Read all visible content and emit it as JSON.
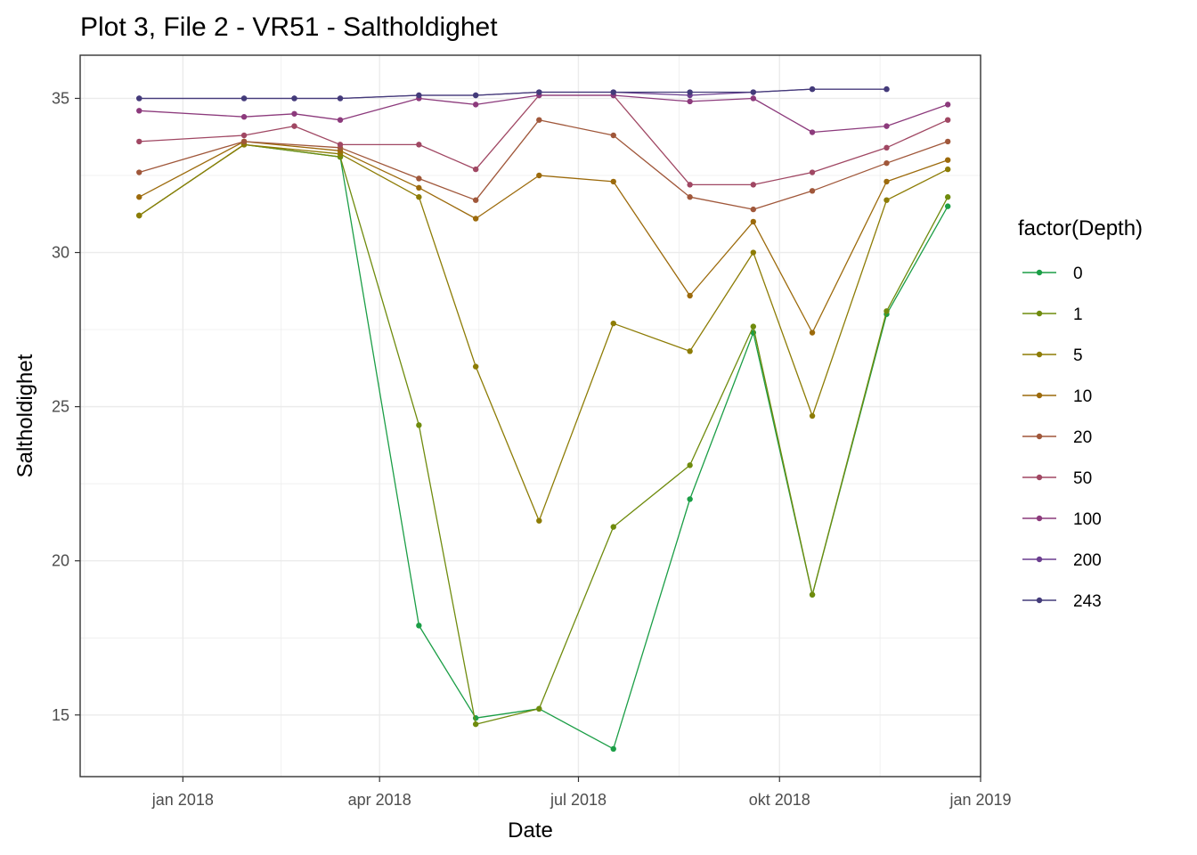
{
  "chart_data": {
    "type": "line",
    "title": "Plot 3, File 2 - VR51  -  Saltholdighet",
    "xlabel": "Date",
    "ylabel": "Saltholdighet",
    "xlim": [
      "2017-11-15",
      "2019-01-01"
    ],
    "ylim": [
      13.0,
      36.4
    ],
    "x_ticks": [
      {
        "date": "2018-01-01",
        "label": "jan 2018"
      },
      {
        "date": "2018-04-01",
        "label": "apr 2018"
      },
      {
        "date": "2018-07-01",
        "label": "jul 2018"
      },
      {
        "date": "2018-10-01",
        "label": "okt 2018"
      },
      {
        "date": "2019-01-01",
        "label": "jan 2019"
      }
    ],
    "y_ticks": [
      15,
      20,
      25,
      30,
      35
    ],
    "grid": true,
    "legend": {
      "title": "factor(Depth)",
      "position": "right"
    },
    "series": [
      {
        "name": "0",
        "color": "#1b9e46",
        "points": [
          [
            "2017-12-12",
            31.2
          ],
          [
            "2018-01-29",
            33.5
          ],
          [
            "2018-03-14",
            33.1
          ],
          [
            "2018-04-19",
            17.9
          ],
          [
            "2018-05-15",
            14.9
          ],
          [
            "2018-06-13",
            15.2
          ],
          [
            "2018-07-17",
            13.9
          ],
          [
            "2018-08-21",
            22.0
          ],
          [
            "2018-09-19",
            27.4
          ],
          [
            "2018-10-16",
            18.9
          ],
          [
            "2018-11-19",
            28.0
          ],
          [
            "2018-12-17",
            31.5
          ]
        ]
      },
      {
        "name": "1",
        "color": "#6f8b0d",
        "points": [
          [
            "2017-12-12",
            31.2
          ],
          [
            "2018-01-29",
            33.5
          ],
          [
            "2018-03-14",
            33.1
          ],
          [
            "2018-04-19",
            24.4
          ],
          [
            "2018-05-15",
            14.7
          ],
          [
            "2018-06-13",
            15.2
          ],
          [
            "2018-07-17",
            21.1
          ],
          [
            "2018-08-21",
            23.1
          ],
          [
            "2018-09-19",
            27.6
          ],
          [
            "2018-10-16",
            18.9
          ],
          [
            "2018-11-19",
            28.1
          ],
          [
            "2018-12-17",
            31.8
          ]
        ]
      },
      {
        "name": "5",
        "color": "#8d7c05",
        "points": [
          [
            "2017-12-12",
            31.2
          ],
          [
            "2018-01-29",
            33.5
          ],
          [
            "2018-03-14",
            33.2
          ],
          [
            "2018-04-19",
            31.8
          ],
          [
            "2018-05-15",
            26.3
          ],
          [
            "2018-06-13",
            21.3
          ],
          [
            "2018-07-17",
            27.7
          ],
          [
            "2018-08-21",
            26.8
          ],
          [
            "2018-09-19",
            30.0
          ],
          [
            "2018-10-16",
            24.7
          ],
          [
            "2018-11-19",
            31.7
          ],
          [
            "2018-12-17",
            32.7
          ]
        ]
      },
      {
        "name": "10",
        "color": "#9c6a0b",
        "points": [
          [
            "2017-12-12",
            31.8
          ],
          [
            "2018-01-29",
            33.6
          ],
          [
            "2018-03-14",
            33.3
          ],
          [
            "2018-04-19",
            32.1
          ],
          [
            "2018-05-15",
            31.1
          ],
          [
            "2018-06-13",
            32.5
          ],
          [
            "2018-07-17",
            32.3
          ],
          [
            "2018-08-21",
            28.6
          ],
          [
            "2018-09-19",
            31.0
          ],
          [
            "2018-10-16",
            27.4
          ],
          [
            "2018-11-19",
            32.3
          ],
          [
            "2018-12-17",
            33.0
          ]
        ]
      },
      {
        "name": "20",
        "color": "#a0573a",
        "points": [
          [
            "2017-12-12",
            32.6
          ],
          [
            "2018-01-29",
            33.6
          ],
          [
            "2018-03-14",
            33.4
          ],
          [
            "2018-04-19",
            32.4
          ],
          [
            "2018-05-15",
            31.7
          ],
          [
            "2018-06-13",
            34.3
          ],
          [
            "2018-07-17",
            33.8
          ],
          [
            "2018-08-21",
            31.8
          ],
          [
            "2018-09-19",
            31.4
          ],
          [
            "2018-10-16",
            32.0
          ],
          [
            "2018-11-19",
            32.9
          ],
          [
            "2018-12-17",
            33.6
          ]
        ]
      },
      {
        "name": "50",
        "color": "#a04763",
        "points": [
          [
            "2017-12-12",
            33.6
          ],
          [
            "2018-01-29",
            33.8
          ],
          [
            "2018-02-21",
            34.1
          ],
          [
            "2018-03-14",
            33.5
          ],
          [
            "2018-04-19",
            33.5
          ],
          [
            "2018-05-15",
            32.7
          ],
          [
            "2018-06-13",
            35.1
          ],
          [
            "2018-07-17",
            35.1
          ],
          [
            "2018-08-21",
            32.2
          ],
          [
            "2018-09-19",
            32.2
          ],
          [
            "2018-10-16",
            32.6
          ],
          [
            "2018-11-19",
            33.4
          ],
          [
            "2018-12-17",
            34.3
          ]
        ]
      },
      {
        "name": "100",
        "color": "#8c3a7c",
        "points": [
          [
            "2017-12-12",
            34.6
          ],
          [
            "2018-01-29",
            34.4
          ],
          [
            "2018-02-21",
            34.5
          ],
          [
            "2018-03-14",
            34.3
          ],
          [
            "2018-04-19",
            35.0
          ],
          [
            "2018-05-15",
            34.8
          ],
          [
            "2018-06-13",
            35.1
          ],
          [
            "2018-07-17",
            35.1
          ],
          [
            "2018-08-21",
            34.9
          ],
          [
            "2018-09-19",
            35.0
          ],
          [
            "2018-10-16",
            33.9
          ],
          [
            "2018-11-19",
            34.1
          ],
          [
            "2018-12-17",
            34.8
          ]
        ]
      },
      {
        "name": "200",
        "color": "#6a3d8f",
        "points": [
          [
            "2017-12-12",
            35.0
          ],
          [
            "2018-01-29",
            35.0
          ],
          [
            "2018-02-21",
            35.0
          ],
          [
            "2018-03-14",
            35.0
          ],
          [
            "2018-04-19",
            35.1
          ],
          [
            "2018-05-15",
            35.1
          ],
          [
            "2018-06-13",
            35.2
          ],
          [
            "2018-07-17",
            35.2
          ],
          [
            "2018-08-21",
            35.1
          ],
          [
            "2018-09-19",
            35.2
          ],
          [
            "2018-10-16",
            35.3
          ],
          [
            "2018-11-19",
            35.3
          ]
        ]
      },
      {
        "name": "243",
        "color": "#433b7a",
        "points": [
          [
            "2017-12-12",
            35.0
          ],
          [
            "2018-01-29",
            35.0
          ],
          [
            "2018-02-21",
            35.0
          ],
          [
            "2018-03-14",
            35.0
          ],
          [
            "2018-04-19",
            35.1
          ],
          [
            "2018-05-15",
            35.1
          ],
          [
            "2018-06-13",
            35.2
          ],
          [
            "2018-07-17",
            35.2
          ],
          [
            "2018-08-21",
            35.2
          ],
          [
            "2018-09-19",
            35.2
          ],
          [
            "2018-10-16",
            35.3
          ],
          [
            "2018-11-19",
            35.3
          ]
        ]
      }
    ]
  }
}
